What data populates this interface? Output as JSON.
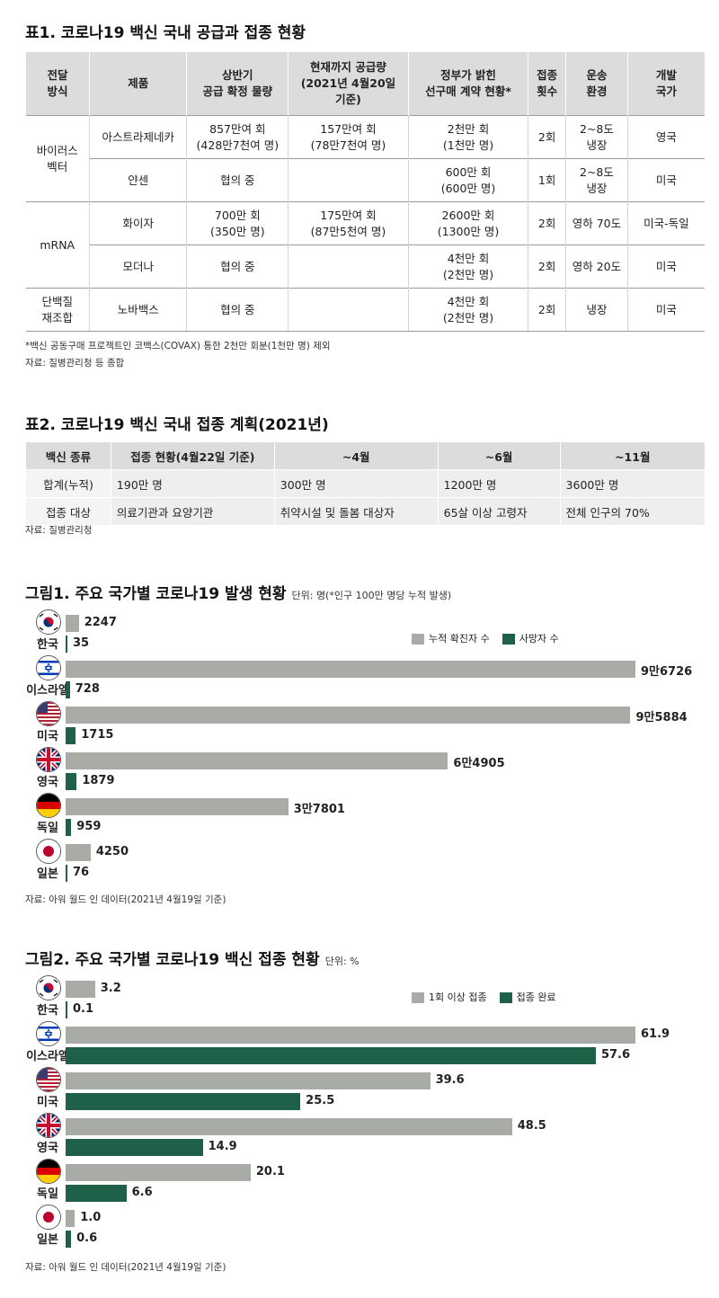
{
  "table1": {
    "title": "표1. 코로나19 백신 국내 공급과 접종 현황",
    "headers": [
      "전달\n방식",
      "제품",
      "상반기\n공급 확정 물량",
      "현재까지 공급량\n(2021년 4월20일\n기준)",
      "정부가 밝힌\n선구매 계약 현황*",
      "접종\n횟수",
      "운송\n환경",
      "개발\n국가"
    ],
    "groups": [
      "바이러스\n벡터",
      "mRNA",
      "단백질\n재조합"
    ],
    "rows": [
      [
        "아스트라제네카",
        "857만여 회\n(428만7천여 명)",
        "157만여 회\n(78만7천여 명)",
        "2천만 회\n(1천만 명)",
        "2회",
        "2~8도\n냉장",
        "영국"
      ],
      [
        "얀센",
        "협의 중",
        "",
        "600만 회\n(600만 명)",
        "1회",
        "2~8도\n냉장",
        "미국"
      ],
      [
        "화이자",
        "700만 회\n(350만 명)",
        "175만여 회\n(87만5천여 명)",
        "2600만 회\n(1300만 명)",
        "2회",
        "영하 70도",
        "미국-독일"
      ],
      [
        "모더나",
        "협의 중",
        "",
        "4천만 회\n(2천만 명)",
        "2회",
        "영하 20도",
        "미국"
      ],
      [
        "노바백스",
        "협의 중",
        "",
        "4천만 회\n(2천만 명)",
        "2회",
        "냉장",
        "미국"
      ]
    ],
    "footnote": "*백신 공동구매 프로젝트인 코백스(COVAX) 통한 2천만 회분(1천만 명) 제외",
    "source": "자료: 질병관리청 등 종합"
  },
  "table2": {
    "title": "표2. 코로나19 백신 국내 접종 계획(2021년)",
    "headers": [
      "백신 종류",
      "접종 현황(4월22일 기준)",
      "~4월",
      "~6월",
      "~11월"
    ],
    "rows": [
      [
        "합계(누적)",
        "190만 명",
        "300만 명",
        "1200만 명",
        "3600만 명"
      ],
      [
        "접종 대상",
        "의료기관과 요양기관",
        "취약시설 및 돌봄 대상자",
        "65살 이상 고령자",
        "전체 인구의 70%"
      ]
    ],
    "source": "자료: 질병관리청"
  },
  "figure1": {
    "title": "그림1. 주요 국가별 코로나19 발생 현황",
    "unit": "단위: 명(*인구 100만 명당 누적 발생)",
    "source": "자료: 아워 월드 인 데이터(2021년 4월19일 기준)"
  },
  "figure2": {
    "title": "그림2. 주요 국가별 코로나19 백신 접종 현황",
    "unit": "단위: %",
    "source": "자료: 아워 월드 인 데이터(2021년 4월19일 기준)"
  },
  "chart_data": [
    {
      "type": "bar",
      "categories": [
        "한국",
        "이스라엘",
        "미국",
        "영국",
        "독일",
        "일본"
      ],
      "series": [
        {
          "name": "누적 확진자 수",
          "values": [
            2247,
            96726,
            95884,
            64905,
            37801,
            4250
          ],
          "labels": [
            "2247",
            "9만6726",
            "9만5884",
            "6만4905",
            "3만7801",
            "4250"
          ],
          "color": "#a9aca6"
        },
        {
          "name": "사망자 수",
          "values": [
            35,
            728,
            1715,
            1879,
            959,
            76
          ],
          "labels": [
            "35",
            "728",
            "1715",
            "1879",
            "959",
            "76"
          ],
          "color": "#1f6048"
        }
      ],
      "legend": "top-right"
    },
    {
      "type": "bar",
      "categories": [
        "한국",
        "이스라엘",
        "미국",
        "영국",
        "독일",
        "일본"
      ],
      "series": [
        {
          "name": "1회 이상 접종",
          "values": [
            3.2,
            61.9,
            39.6,
            48.5,
            20.1,
            1.0
          ],
          "labels": [
            "3.2",
            "61.9",
            "39.6",
            "48.5",
            "20.1",
            "1.0"
          ],
          "color": "#a9aca6"
        },
        {
          "name": "접종 완료",
          "values": [
            0.1,
            57.6,
            25.5,
            14.9,
            6.6,
            0.6
          ],
          "labels": [
            "0.1",
            "57.6",
            "25.5",
            "14.9",
            "6.6",
            "0.6"
          ],
          "color": "#1f6048"
        }
      ],
      "legend": "top-right"
    }
  ],
  "flags": [
    "kr-flag-icon",
    "il-flag-icon",
    "us-flag-icon",
    "gb-flag-icon",
    "de-flag-icon",
    "jp-flag-icon"
  ]
}
